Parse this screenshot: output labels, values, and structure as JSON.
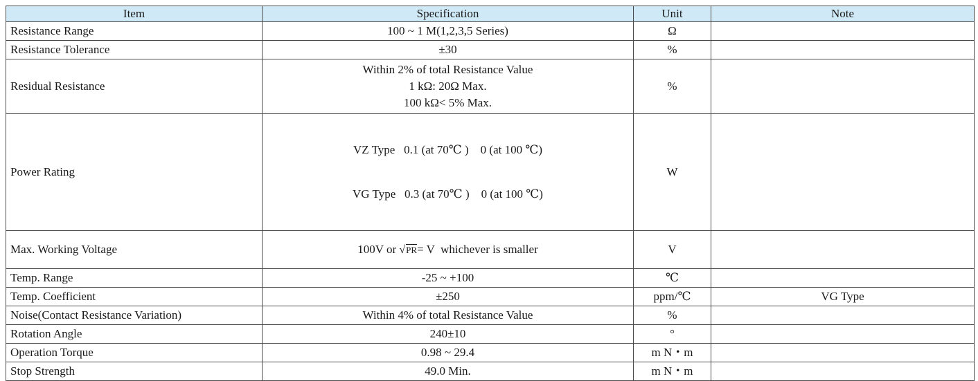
{
  "header": {
    "item": "Item",
    "specification": "Specification",
    "unit": "Unit",
    "note": "Note"
  },
  "rows": [
    {
      "item": "Resistance Range",
      "spec": [
        "100 ~ 1 M(1,2,3,5 Series)"
      ],
      "unit": "Ω",
      "note": ""
    },
    {
      "item": "Resistance Tolerance",
      "spec": [
        "±30"
      ],
      "unit": "%",
      "note": ""
    },
    {
      "item": "Residual Resistance",
      "spec": [
        "Within 2% of total Resistance Value",
        "1 kΩ: 20Ω Max.",
        "100 kΩ< 5% Max."
      ],
      "unit": "%",
      "note": ""
    },
    {
      "item": "Power Rating",
      "spec": [
        "VZ Type   0.1 (at 70℃ )    0 (at 100 ℃)",
        "VG Type   0.3 (at 70℃ )    0 (at 100 ℃)"
      ],
      "unit": "W",
      "note": ""
    },
    {
      "item": "Max. Working Voltage",
      "spec_prefix": "100V or ",
      "spec_sqrt": "PR",
      "spec_suffix": "= V  whichever is smaller",
      "unit": "V",
      "note": ""
    },
    {
      "item": "Temp. Range",
      "spec": [
        "-25 ~ +100"
      ],
      "unit": "℃",
      "note": ""
    },
    {
      "item": "Temp. Coefficient",
      "spec": [
        "±250"
      ],
      "unit": "ppm/℃",
      "note": "VG Type"
    },
    {
      "item": "Noise(Contact Resistance Variation)",
      "spec": [
        "Within 4% of total Resistance Value"
      ],
      "unit": "%",
      "note": ""
    },
    {
      "item": "Rotation Angle",
      "spec": [
        "240±10"
      ],
      "unit": "°",
      "note": ""
    },
    {
      "item": "Operation Torque",
      "spec": [
        "0.98 ~ 29.4"
      ],
      "unit": "m N・m",
      "note": ""
    },
    {
      "item": "Stop Strength",
      "spec": [
        "49.0 Min."
      ],
      "unit": "m N・m",
      "note": ""
    }
  ]
}
